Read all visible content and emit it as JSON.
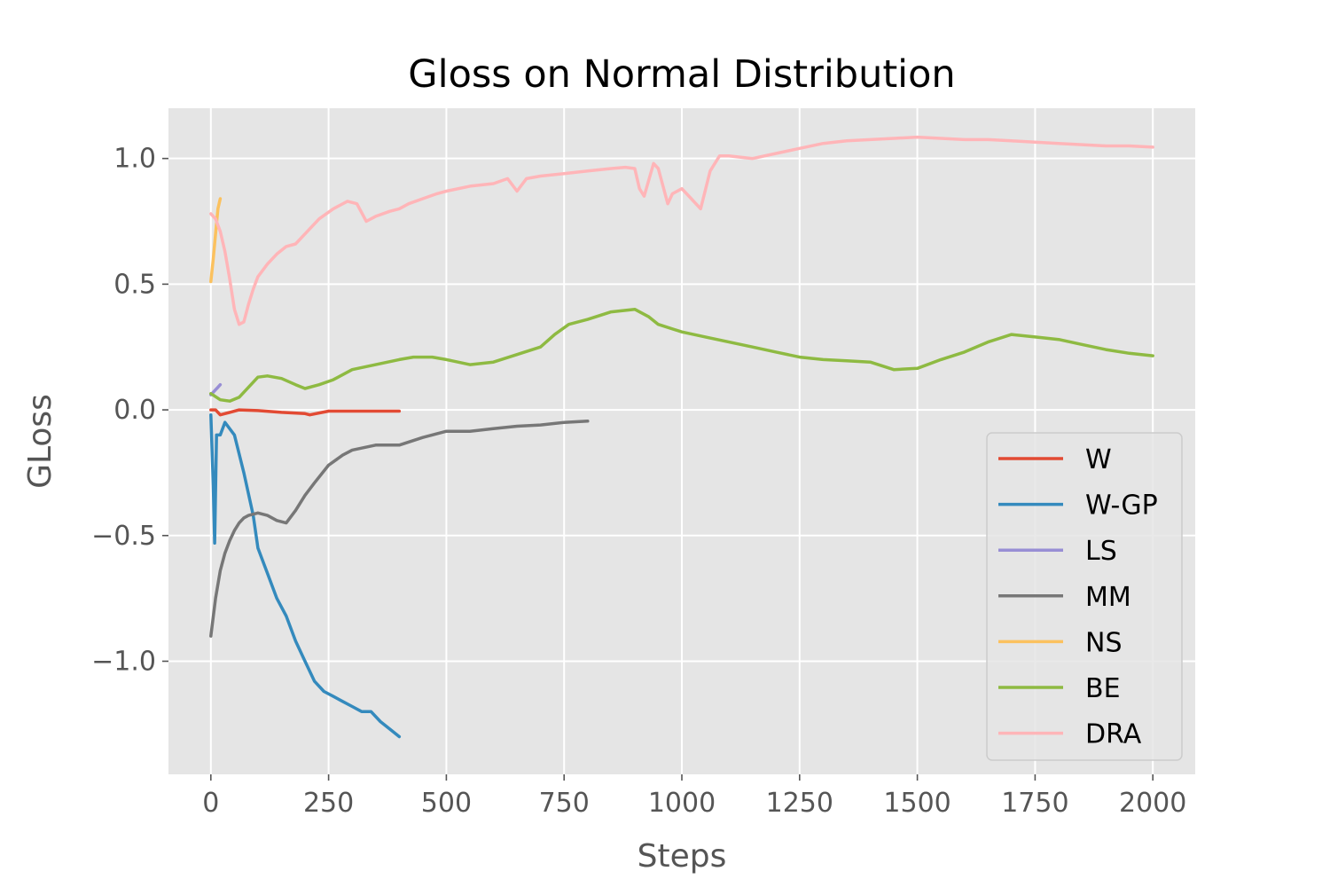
{
  "chart_data": {
    "type": "line",
    "title": "Gloss on Normal Distribution",
    "xlabel": "Steps",
    "ylabel": "GLoss",
    "xlim": [
      -90,
      2090
    ],
    "ylim": [
      -1.45,
      1.2
    ],
    "xticks": [
      0,
      250,
      500,
      750,
      1000,
      1250,
      1500,
      1750,
      2000
    ],
    "xtick_labels": [
      "0",
      "250",
      "500",
      "750",
      "1000",
      "1250",
      "1500",
      "1750",
      "2000"
    ],
    "yticks": [
      1.0,
      0.5,
      0.0,
      -0.5,
      -1.0
    ],
    "ytick_labels": [
      "1.0",
      "0.5",
      "0.0",
      "−0.5",
      "−1.0"
    ],
    "grid": true,
    "legend_position": "lower-right",
    "series": [
      {
        "name": "W",
        "color": "#E24A33",
        "points": [
          [
            0,
            0.0
          ],
          [
            10,
            0.0
          ],
          [
            20,
            -0.02
          ],
          [
            30,
            -0.015
          ],
          [
            40,
            -0.01
          ],
          [
            60,
            0.0
          ],
          [
            100,
            -0.003
          ],
          [
            150,
            -0.01
          ],
          [
            200,
            -0.015
          ],
          [
            210,
            -0.02
          ],
          [
            250,
            -0.005
          ],
          [
            300,
            -0.005
          ],
          [
            350,
            -0.005
          ],
          [
            400,
            -0.005
          ]
        ]
      },
      {
        "name": "W-GP",
        "color": "#348ABD",
        "points": [
          [
            0,
            -0.02
          ],
          [
            5,
            -0.3
          ],
          [
            8,
            -0.53
          ],
          [
            12,
            -0.1
          ],
          [
            20,
            -0.1
          ],
          [
            30,
            -0.05
          ],
          [
            50,
            -0.1
          ],
          [
            70,
            -0.25
          ],
          [
            90,
            -0.42
          ],
          [
            100,
            -0.55
          ],
          [
            120,
            -0.65
          ],
          [
            140,
            -0.75
          ],
          [
            160,
            -0.82
          ],
          [
            180,
            -0.92
          ],
          [
            200,
            -1.0
          ],
          [
            220,
            -1.08
          ],
          [
            240,
            -1.12
          ],
          [
            260,
            -1.14
          ],
          [
            280,
            -1.16
          ],
          [
            300,
            -1.18
          ],
          [
            320,
            -1.2
          ],
          [
            340,
            -1.2
          ],
          [
            360,
            -1.24
          ],
          [
            380,
            -1.27
          ],
          [
            400,
            -1.3
          ]
        ]
      },
      {
        "name": "LS",
        "color": "#988ED5",
        "points": [
          [
            0,
            0.06
          ],
          [
            5,
            0.07
          ],
          [
            10,
            0.08
          ],
          [
            15,
            0.09
          ],
          [
            20,
            0.1
          ]
        ]
      },
      {
        "name": "MM",
        "color": "#777777",
        "points": [
          [
            0,
            -0.9
          ],
          [
            10,
            -0.75
          ],
          [
            20,
            -0.64
          ],
          [
            30,
            -0.57
          ],
          [
            40,
            -0.52
          ],
          [
            50,
            -0.48
          ],
          [
            60,
            -0.45
          ],
          [
            70,
            -0.43
          ],
          [
            80,
            -0.42
          ],
          [
            100,
            -0.41
          ],
          [
            120,
            -0.42
          ],
          [
            140,
            -0.44
          ],
          [
            160,
            -0.45
          ],
          [
            180,
            -0.4
          ],
          [
            200,
            -0.34
          ],
          [
            220,
            -0.29
          ],
          [
            250,
            -0.22
          ],
          [
            280,
            -0.18
          ],
          [
            300,
            -0.16
          ],
          [
            350,
            -0.14
          ],
          [
            400,
            -0.14
          ],
          [
            450,
            -0.11
          ],
          [
            500,
            -0.085
          ],
          [
            550,
            -0.085
          ],
          [
            600,
            -0.075
          ],
          [
            650,
            -0.065
          ],
          [
            700,
            -0.06
          ],
          [
            750,
            -0.05
          ],
          [
            800,
            -0.045
          ]
        ]
      },
      {
        "name": "NS",
        "color": "#FBC15E",
        "points": [
          [
            0,
            0.51
          ],
          [
            5,
            0.6
          ],
          [
            10,
            0.7
          ],
          [
            15,
            0.8
          ],
          [
            20,
            0.84
          ]
        ]
      },
      {
        "name": "BE",
        "color": "#8EBA42",
        "points": [
          [
            0,
            0.065
          ],
          [
            20,
            0.04
          ],
          [
            40,
            0.035
          ],
          [
            60,
            0.05
          ],
          [
            80,
            0.09
          ],
          [
            100,
            0.13
          ],
          [
            120,
            0.135
          ],
          [
            150,
            0.125
          ],
          [
            180,
            0.1
          ],
          [
            200,
            0.085
          ],
          [
            230,
            0.1
          ],
          [
            260,
            0.12
          ],
          [
            300,
            0.16
          ],
          [
            350,
            0.18
          ],
          [
            400,
            0.2
          ],
          [
            430,
            0.21
          ],
          [
            470,
            0.21
          ],
          [
            500,
            0.2
          ],
          [
            550,
            0.18
          ],
          [
            600,
            0.19
          ],
          [
            650,
            0.22
          ],
          [
            700,
            0.25
          ],
          [
            730,
            0.3
          ],
          [
            760,
            0.34
          ],
          [
            800,
            0.36
          ],
          [
            850,
            0.39
          ],
          [
            900,
            0.4
          ],
          [
            930,
            0.37
          ],
          [
            950,
            0.34
          ],
          [
            1000,
            0.31
          ],
          [
            1050,
            0.29
          ],
          [
            1100,
            0.27
          ],
          [
            1150,
            0.25
          ],
          [
            1200,
            0.23
          ],
          [
            1250,
            0.21
          ],
          [
            1300,
            0.2
          ],
          [
            1350,
            0.195
          ],
          [
            1400,
            0.19
          ],
          [
            1450,
            0.16
          ],
          [
            1500,
            0.165
          ],
          [
            1550,
            0.2
          ],
          [
            1600,
            0.23
          ],
          [
            1650,
            0.27
          ],
          [
            1700,
            0.3
          ],
          [
            1750,
            0.29
          ],
          [
            1800,
            0.28
          ],
          [
            1850,
            0.26
          ],
          [
            1900,
            0.24
          ],
          [
            1950,
            0.225
          ],
          [
            2000,
            0.215
          ]
        ]
      },
      {
        "name": "DRA",
        "color": "#FFB5B8",
        "points": [
          [
            0,
            0.78
          ],
          [
            10,
            0.76
          ],
          [
            20,
            0.71
          ],
          [
            30,
            0.63
          ],
          [
            40,
            0.52
          ],
          [
            50,
            0.4
          ],
          [
            60,
            0.34
          ],
          [
            70,
            0.35
          ],
          [
            80,
            0.42
          ],
          [
            90,
            0.48
          ],
          [
            100,
            0.53
          ],
          [
            120,
            0.58
          ],
          [
            140,
            0.62
          ],
          [
            160,
            0.65
          ],
          [
            180,
            0.66
          ],
          [
            200,
            0.7
          ],
          [
            230,
            0.76
          ],
          [
            260,
            0.8
          ],
          [
            290,
            0.83
          ],
          [
            310,
            0.82
          ],
          [
            330,
            0.75
          ],
          [
            350,
            0.77
          ],
          [
            380,
            0.79
          ],
          [
            400,
            0.8
          ],
          [
            420,
            0.82
          ],
          [
            450,
            0.84
          ],
          [
            480,
            0.86
          ],
          [
            500,
            0.87
          ],
          [
            550,
            0.89
          ],
          [
            600,
            0.9
          ],
          [
            630,
            0.92
          ],
          [
            650,
            0.87
          ],
          [
            670,
            0.92
          ],
          [
            700,
            0.93
          ],
          [
            750,
            0.94
          ],
          [
            800,
            0.95
          ],
          [
            850,
            0.96
          ],
          [
            880,
            0.965
          ],
          [
            900,
            0.96
          ],
          [
            910,
            0.88
          ],
          [
            920,
            0.85
          ],
          [
            940,
            0.98
          ],
          [
            950,
            0.96
          ],
          [
            960,
            0.89
          ],
          [
            970,
            0.82
          ],
          [
            980,
            0.86
          ],
          [
            1000,
            0.88
          ],
          [
            1020,
            0.84
          ],
          [
            1040,
            0.8
          ],
          [
            1060,
            0.95
          ],
          [
            1080,
            1.01
          ],
          [
            1100,
            1.01
          ],
          [
            1150,
            1.0
          ],
          [
            1200,
            1.02
          ],
          [
            1250,
            1.04
          ],
          [
            1300,
            1.06
          ],
          [
            1350,
            1.07
          ],
          [
            1400,
            1.075
          ],
          [
            1450,
            1.08
          ],
          [
            1500,
            1.085
          ],
          [
            1550,
            1.08
          ],
          [
            1600,
            1.075
          ],
          [
            1650,
            1.075
          ],
          [
            1700,
            1.07
          ],
          [
            1750,
            1.065
          ],
          [
            1800,
            1.06
          ],
          [
            1850,
            1.055
          ],
          [
            1900,
            1.05
          ],
          [
            1950,
            1.05
          ],
          [
            2000,
            1.045
          ]
        ]
      }
    ]
  }
}
